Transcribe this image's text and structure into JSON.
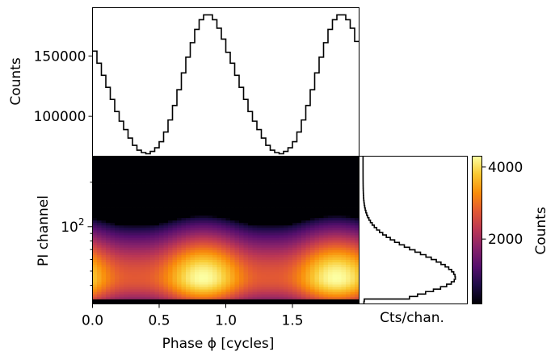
{
  "chart_data": [
    {
      "type": "line",
      "panel": "top profile (step histogram)",
      "ylabel": "Counts",
      "yticks": [
        100000,
        150000
      ],
      "ytick_labels": [
        "100000",
        "150000"
      ],
      "ylim": [
        67000,
        190000
      ],
      "x": [
        0.0,
        0.0333,
        0.0667,
        0.1,
        0.1333,
        0.1667,
        0.2,
        0.2333,
        0.2667,
        0.3,
        0.3333,
        0.3667,
        0.4,
        0.4333,
        0.4667,
        0.5,
        0.5333,
        0.5667,
        0.6,
        0.6333,
        0.6667,
        0.7,
        0.7333,
        0.7667,
        0.8,
        0.8333,
        0.8667,
        0.9,
        0.9333,
        0.9667,
        1.0,
        1.0333,
        1.0667,
        1.1,
        1.1333,
        1.1667,
        1.2,
        1.2333,
        1.2667,
        1.3,
        1.3333,
        1.3667,
        1.4,
        1.4333,
        1.4667,
        1.5,
        1.5333,
        1.5667,
        1.6,
        1.6333,
        1.6667,
        1.7,
        1.7333,
        1.7667,
        1.8,
        1.8333,
        1.8667,
        1.9,
        1.9333,
        1.9667
      ],
      "values": [
        154000,
        144000,
        134000,
        124000,
        114000,
        104000,
        96000,
        89000,
        82000,
        76000,
        72000,
        70000,
        69000,
        71000,
        74000,
        79000,
        87000,
        97000,
        109000,
        122000,
        136000,
        149000,
        161000,
        172000,
        180000,
        184000,
        184000,
        180000,
        173000,
        164000,
        153000,
        144000,
        134000,
        124000,
        114000,
        104000,
        96000,
        89000,
        82000,
        76000,
        72000,
        70000,
        69000,
        71000,
        74000,
        79000,
        87000,
        97000,
        109000,
        122000,
        136000,
        149000,
        161000,
        172000,
        180000,
        184000,
        184000,
        180000,
        173000,
        162000
      ]
    },
    {
      "type": "heatmap",
      "panel": "main phase vs PI channel",
      "xlabel": "Phase ϕ [cycles]",
      "ylabel": "PI channel",
      "xlim": [
        0,
        2
      ],
      "xticks": [
        0.0,
        0.5,
        1.0,
        1.5
      ],
      "xtick_labels": [
        "0.0",
        "0.5",
        "1.0",
        "1.5"
      ],
      "yscale": "log",
      "ylim": [
        30,
        300
      ],
      "yticks": [
        100
      ],
      "ytick_labels": [
        "10^2"
      ],
      "phase_bins": 60,
      "channel_bins": 60,
      "peak_phase": [
        0.83,
        1.83
      ],
      "peak_channel": 45,
      "max_counts": 4300,
      "min_counts": 50,
      "colormap": "inferno"
    },
    {
      "type": "line",
      "panel": "right spectrum (step histogram)",
      "xlabel": "Cts/chan.",
      "scale": "log channel vs counts",
      "peak_channel": 45,
      "peak_counts": 3900,
      "xlim": [
        0,
        4300
      ]
    },
    {
      "type": "colorbar",
      "label": "Counts",
      "ticks": [
        2000,
        4000
      ],
      "tick_labels": [
        "2000",
        "4000"
      ],
      "range": [
        200,
        4300
      ],
      "colormap": "inferno"
    }
  ]
}
